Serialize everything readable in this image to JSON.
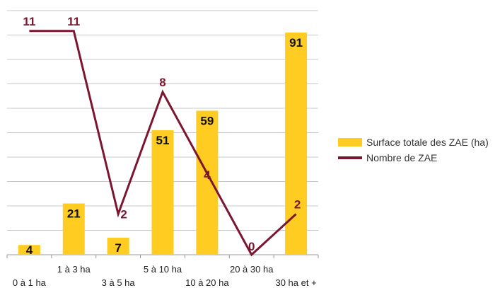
{
  "chart_data": {
    "type": "bar+line",
    "categories": [
      "0 à 1 ha",
      "1 à 3 ha",
      "3 à 5 ha",
      "5 à 10 ha",
      "10 à 20 ha",
      "20 à 30 ha",
      "30 ha et +"
    ],
    "series": [
      {
        "name": "Surface totale des ZAE (ha)",
        "type": "bar",
        "values": [
          4,
          21,
          7,
          51,
          59,
          0,
          91
        ],
        "color": "#FFCC22"
      },
      {
        "name": "Nombre de ZAE",
        "type": "line",
        "values": [
          11,
          11,
          2,
          8,
          4,
          0,
          2
        ],
        "color": "#7B1530"
      }
    ],
    "bar_labels": [
      "4",
      "21",
      "7",
      "51",
      "59",
      "",
      "91"
    ],
    "line_labels": [
      "11",
      "11",
      "2",
      "8",
      "4",
      "0",
      "2"
    ],
    "bar_ylim": [
      0,
      100
    ],
    "line_ylim": [
      0,
      12
    ],
    "grid": true,
    "legend_position": "right"
  }
}
